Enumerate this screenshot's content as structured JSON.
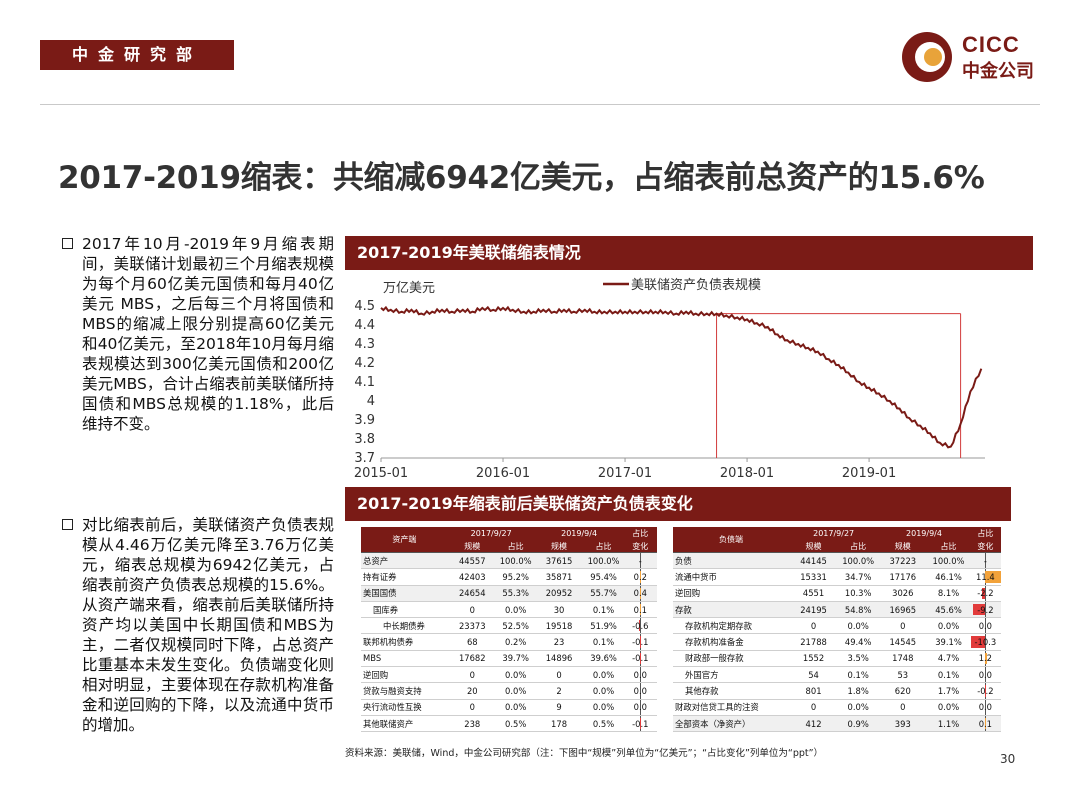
{
  "header": {
    "dept": "中金研究部",
    "logo_en": "CICC",
    "logo_cn": "中金公司"
  },
  "title": "2017-2019缩表：共缩减6942亿美元，占缩表前总资产的15.6%",
  "bullets": [
    "2017年10月-2019年9月缩表期间，美联储计划最初三个月缩表规模为每个月60亿美元国债和每月40亿美元 MBS，之后每三个月将国债和MBS的缩减上限分别提高60亿美元和40亿美元，至2018年10月每月缩表规模达到300亿美元国债和200亿美元MBS，合计占缩表前美联储所持国债和MBS总规模的1.18%，此后维持不变。",
    "对比缩表前后，美联储资产负债表规模从4.46万亿美元降至3.76万亿美元，缩表总规模为6942亿美元，占缩表前资产负债表总规模的15.6%。从资产端来看，缩表前后美联储所持资产均以美国中长期国债和MBS为主，二者仅规模同时下降，占总资产比重基本未发生变化。负债端变化则相对明显，主要体现在存款机构准备金和逆回购的下降，以及流通中货币的增加。"
  ],
  "section1_title": "2017-2019年美联储缩表情况",
  "section2_title": "2017-2019年缩表前后美联储资产负债表变化",
  "chart_data": {
    "type": "line",
    "ylabel": "万亿美元",
    "legend": "美联储资产负债表规模",
    "legend_position": "top-right",
    "ylim": [
      3.7,
      4.5
    ],
    "yticks": [
      "4.5",
      "4.4",
      "4.3",
      "4.2",
      "4.1",
      "4",
      "3.9",
      "3.8",
      "3.7"
    ],
    "xlim": [
      2015.0,
      2019.95
    ],
    "xticks": [
      "2015-01",
      "2016-01",
      "2017-01",
      "2018-01",
      "2019-01"
    ],
    "reference_lines": {
      "x": [
        2017.75,
        2019.75
      ],
      "y": 4.46
    },
    "color": "#7a1b16",
    "series": [
      {
        "x": [
          2015.0,
          2015.08,
          2015.17,
          2015.25,
          2015.33,
          2015.42,
          2015.5,
          2015.58,
          2015.67,
          2015.75,
          2015.83,
          2015.92,
          2016.0,
          2016.08,
          2016.17,
          2016.25,
          2016.33,
          2016.42,
          2016.5,
          2016.58,
          2016.67,
          2016.75,
          2016.83,
          2016.92,
          2017.0,
          2017.08,
          2017.17,
          2017.25,
          2017.33,
          2017.42,
          2017.5,
          2017.58,
          2017.67,
          2017.75,
          2017.83,
          2017.92,
          2018.0,
          2018.08,
          2018.17,
          2018.25,
          2018.33,
          2018.42,
          2018.5,
          2018.58,
          2018.67,
          2018.75,
          2018.83,
          2018.92,
          2019.0,
          2019.08,
          2019.17,
          2019.25,
          2019.33,
          2019.42,
          2019.5,
          2019.58,
          2019.67,
          2019.75,
          2019.83,
          2019.92
        ],
        "y": [
          4.49,
          4.48,
          4.47,
          4.48,
          4.46,
          4.47,
          4.48,
          4.47,
          4.48,
          4.47,
          4.49,
          4.48,
          4.49,
          4.48,
          4.47,
          4.47,
          4.48,
          4.47,
          4.48,
          4.47,
          4.48,
          4.47,
          4.47,
          4.47,
          4.47,
          4.47,
          4.47,
          4.47,
          4.47,
          4.46,
          4.47,
          4.46,
          4.46,
          4.46,
          4.45,
          4.44,
          4.43,
          4.41,
          4.39,
          4.35,
          4.32,
          4.3,
          4.28,
          4.26,
          4.22,
          4.19,
          4.15,
          4.1,
          4.07,
          4.04,
          4.0,
          3.96,
          3.91,
          3.87,
          3.83,
          3.78,
          3.76,
          3.88,
          4.05,
          4.17
        ]
      }
    ]
  },
  "asset_table": {
    "head_label": "资产端",
    "date1": "2017/9/27",
    "date2": "2019/9/4",
    "chg_head": "占比",
    "sub": [
      "规模",
      "占比",
      "规模",
      "占比",
      "变化"
    ],
    "rows": [
      {
        "label": "总资产",
        "v": [
          "44557",
          "100.0%",
          "37615",
          "100.0%"
        ],
        "chg": "-",
        "chg_val": 0,
        "indent": 0,
        "bg": true
      },
      {
        "label": "持有证券",
        "v": [
          "42403",
          "95.2%",
          "35871",
          "95.4%"
        ],
        "chg": "0.2",
        "chg_val": 0.2,
        "indent": 0,
        "bg": false
      },
      {
        "label": "美国国债",
        "v": [
          "24654",
          "55.3%",
          "20952",
          "55.7%"
        ],
        "chg": "0.4",
        "chg_val": 0.4,
        "indent": 0,
        "bg": true
      },
      {
        "label": "国库券",
        "v": [
          "0",
          "0.0%",
          "30",
          "0.1%"
        ],
        "chg": "0.1",
        "chg_val": 0.1,
        "indent": 1,
        "bg": false
      },
      {
        "label": "中长期债券",
        "v": [
          "23373",
          "52.5%",
          "19518",
          "51.9%"
        ],
        "chg": "-0.6",
        "chg_val": -0.6,
        "indent": 2,
        "bg": false
      },
      {
        "label": "联邦机构债券",
        "v": [
          "68",
          "0.2%",
          "23",
          "0.1%"
        ],
        "chg": "-0.1",
        "chg_val": -0.1,
        "indent": 0,
        "bg": false
      },
      {
        "label": "MBS",
        "v": [
          "17682",
          "39.7%",
          "14896",
          "39.6%"
        ],
        "chg": "-0.1",
        "chg_val": -0.1,
        "indent": 0,
        "bg": false
      },
      {
        "label": "逆回购",
        "v": [
          "0",
          "0.0%",
          "0",
          "0.0%"
        ],
        "chg": "0.0",
        "chg_val": 0,
        "indent": 0,
        "bg": false
      },
      {
        "label": "贷款与融资支持",
        "v": [
          "20",
          "0.0%",
          "2",
          "0.0%"
        ],
        "chg": "0.0",
        "chg_val": 0,
        "indent": 0,
        "bg": false
      },
      {
        "label": "央行流动性互换",
        "v": [
          "0",
          "0.0%",
          "9",
          "0.0%"
        ],
        "chg": "0.0",
        "chg_val": 0,
        "indent": 0,
        "bg": false
      },
      {
        "label": "其他联储资产",
        "v": [
          "238",
          "0.5%",
          "178",
          "0.5%"
        ],
        "chg": "-0.1",
        "chg_val": -0.1,
        "indent": 0,
        "bg": false
      }
    ]
  },
  "liab_table": {
    "head_label": "负债端",
    "date1": "2017/9/27",
    "date2": "2019/9/4",
    "chg_head": "占比",
    "sub": [
      "规模",
      "占比",
      "规模",
      "占比",
      "变化"
    ],
    "rows": [
      {
        "label": "负债",
        "v": [
          "44145",
          "100.0%",
          "37223",
          "100.0%"
        ],
        "chg": "-",
        "chg_val": 0,
        "indent": 0,
        "bg": true
      },
      {
        "label": "流通中货币",
        "v": [
          "15331",
          "34.7%",
          "17176",
          "46.1%"
        ],
        "chg": "11.4",
        "chg_val": 11.4,
        "indent": 0,
        "bg": false
      },
      {
        "label": "逆回购",
        "v": [
          "4551",
          "10.3%",
          "3026",
          "8.1%"
        ],
        "chg": "-2.2",
        "chg_val": -2.2,
        "indent": 0,
        "bg": false
      },
      {
        "label": "存款",
        "v": [
          "24195",
          "54.8%",
          "16965",
          "45.6%"
        ],
        "chg": "-9.2",
        "chg_val": -9.2,
        "indent": 0,
        "bg": true
      },
      {
        "label": "存款机构定期存款",
        "v": [
          "0",
          "0.0%",
          "0",
          "0.0%"
        ],
        "chg": "0.0",
        "chg_val": 0,
        "indent": 1,
        "bg": false
      },
      {
        "label": "存款机构准备金",
        "v": [
          "21788",
          "49.4%",
          "14545",
          "39.1%"
        ],
        "chg": "-10.3",
        "chg_val": -10.3,
        "indent": 1,
        "bg": false
      },
      {
        "label": "财政部一般存款",
        "v": [
          "1552",
          "3.5%",
          "1748",
          "4.7%"
        ],
        "chg": "1.2",
        "chg_val": 1.2,
        "indent": 1,
        "bg": false
      },
      {
        "label": "外国官方",
        "v": [
          "54",
          "0.1%",
          "53",
          "0.1%"
        ],
        "chg": "0.0",
        "chg_val": 0,
        "indent": 1,
        "bg": false
      },
      {
        "label": "其他存款",
        "v": [
          "801",
          "1.8%",
          "620",
          "1.7%"
        ],
        "chg": "-0.2",
        "chg_val": -0.2,
        "indent": 1,
        "bg": false
      },
      {
        "label": "财政对信贷工具的注资",
        "v": [
          "0",
          "0.0%",
          "0",
          "0.0%"
        ],
        "chg": "0.0",
        "chg_val": 0,
        "indent": 0,
        "bg": false
      },
      {
        "label": "全部资本（净资产）",
        "v": [
          "412",
          "0.9%",
          "393",
          "1.1%"
        ],
        "chg": "0.1",
        "chg_val": 0.1,
        "indent": 0,
        "bg": true
      }
    ]
  },
  "source": "资料来源：美联储，Wind，中金公司研究部（注：下图中“规模”列单位为“亿美元”；“占比变化”列单位为“ppt”）",
  "page_number": "30",
  "colors": {
    "brand": "#7a1b16",
    "pos_fill": "#f2a23a",
    "neg_fill": "#e23b3b"
  }
}
